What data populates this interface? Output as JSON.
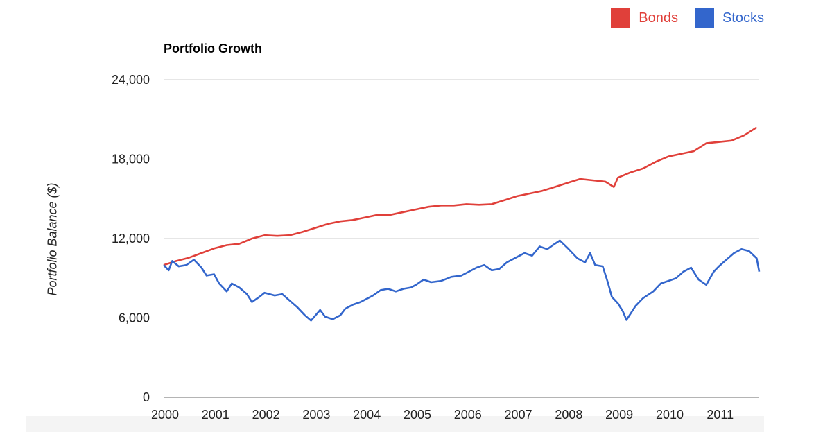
{
  "chart_data": {
    "type": "line",
    "title": "Portfolio Growth",
    "ylabel": "Portfolio Balance ($)",
    "xlabel": "",
    "ylim": [
      0,
      24000
    ],
    "xlim": [
      2000,
      2011.8
    ],
    "yticks": [
      0,
      6000,
      12000,
      18000,
      24000
    ],
    "ytick_labels": [
      "0",
      "6,000",
      "12,000",
      "18,000",
      "24,000"
    ],
    "xticks": [
      2000,
      2001,
      2002,
      2003,
      2004,
      2005,
      2006,
      2007,
      2008,
      2009,
      2010,
      2011
    ],
    "xtick_labels": [
      "2000",
      "2001",
      "2002",
      "2003",
      "2004",
      "2005",
      "2006",
      "2007",
      "2008",
      "2009",
      "2010",
      "2011"
    ],
    "grid": true,
    "legend_position": "top-right",
    "series": [
      {
        "name": "Bonds",
        "color": "#e0403a",
        "points": [
          [
            2000.0,
            10000
          ],
          [
            2000.25,
            10300
          ],
          [
            2000.5,
            10550
          ],
          [
            2000.75,
            10900
          ],
          [
            2001.0,
            11250
          ],
          [
            2001.25,
            11500
          ],
          [
            2001.5,
            11600
          ],
          [
            2001.75,
            12000
          ],
          [
            2002.0,
            12250
          ],
          [
            2002.25,
            12200
          ],
          [
            2002.5,
            12250
          ],
          [
            2002.75,
            12500
          ],
          [
            2003.0,
            12800
          ],
          [
            2003.25,
            13100
          ],
          [
            2003.5,
            13300
          ],
          [
            2003.75,
            13400
          ],
          [
            2004.0,
            13600
          ],
          [
            2004.25,
            13800
          ],
          [
            2004.5,
            13800
          ],
          [
            2004.75,
            14000
          ],
          [
            2005.0,
            14200
          ],
          [
            2005.25,
            14400
          ],
          [
            2005.5,
            14500
          ],
          [
            2005.75,
            14500
          ],
          [
            2006.0,
            14600
          ],
          [
            2006.25,
            14550
          ],
          [
            2006.5,
            14600
          ],
          [
            2006.75,
            14900
          ],
          [
            2007.0,
            15200
          ],
          [
            2007.25,
            15400
          ],
          [
            2007.5,
            15600
          ],
          [
            2007.75,
            15900
          ],
          [
            2008.0,
            16200
          ],
          [
            2008.25,
            16500
          ],
          [
            2008.5,
            16400
          ],
          [
            2008.75,
            16300
          ],
          [
            2008.92,
            15900
          ],
          [
            2009.0,
            16600
          ],
          [
            2009.25,
            17000
          ],
          [
            2009.5,
            17300
          ],
          [
            2009.75,
            17800
          ],
          [
            2010.0,
            18200
          ],
          [
            2010.25,
            18400
          ],
          [
            2010.5,
            18600
          ],
          [
            2010.75,
            19200
          ],
          [
            2011.0,
            19300
          ],
          [
            2011.25,
            19400
          ],
          [
            2011.5,
            19800
          ],
          [
            2011.75,
            20400
          ]
        ]
      },
      {
        "name": "Stocks",
        "color": "#3366cc",
        "points": [
          [
            2000.0,
            10000
          ],
          [
            2000.1,
            9600
          ],
          [
            2000.17,
            10300
          ],
          [
            2000.3,
            9900
          ],
          [
            2000.45,
            10000
          ],
          [
            2000.6,
            10400
          ],
          [
            2000.75,
            9800
          ],
          [
            2000.85,
            9200
          ],
          [
            2001.0,
            9300
          ],
          [
            2001.1,
            8600
          ],
          [
            2001.25,
            8000
          ],
          [
            2001.35,
            8600
          ],
          [
            2001.5,
            8300
          ],
          [
            2001.65,
            7800
          ],
          [
            2001.75,
            7200
          ],
          [
            2001.9,
            7600
          ],
          [
            2002.0,
            7900
          ],
          [
            2002.2,
            7700
          ],
          [
            2002.35,
            7800
          ],
          [
            2002.5,
            7300
          ],
          [
            2002.65,
            6800
          ],
          [
            2002.8,
            6200
          ],
          [
            2002.92,
            5800
          ],
          [
            2003.1,
            6600
          ],
          [
            2003.2,
            6100
          ],
          [
            2003.35,
            5900
          ],
          [
            2003.5,
            6200
          ],
          [
            2003.6,
            6700
          ],
          [
            2003.75,
            7000
          ],
          [
            2003.9,
            7200
          ],
          [
            2004.0,
            7400
          ],
          [
            2004.15,
            7700
          ],
          [
            2004.3,
            8100
          ],
          [
            2004.45,
            8200
          ],
          [
            2004.6,
            8000
          ],
          [
            2004.75,
            8200
          ],
          [
            2004.9,
            8300
          ],
          [
            2005.0,
            8500
          ],
          [
            2005.15,
            8900
          ],
          [
            2005.3,
            8700
          ],
          [
            2005.5,
            8800
          ],
          [
            2005.7,
            9100
          ],
          [
            2005.9,
            9200
          ],
          [
            2006.0,
            9400
          ],
          [
            2006.2,
            9800
          ],
          [
            2006.35,
            10000
          ],
          [
            2006.5,
            9600
          ],
          [
            2006.65,
            9700
          ],
          [
            2006.8,
            10200
          ],
          [
            2007.0,
            10600
          ],
          [
            2007.15,
            10900
          ],
          [
            2007.3,
            10700
          ],
          [
            2007.45,
            11400
          ],
          [
            2007.6,
            11200
          ],
          [
            2007.75,
            11600
          ],
          [
            2007.85,
            11850
          ],
          [
            2008.0,
            11300
          ],
          [
            2008.2,
            10500
          ],
          [
            2008.35,
            10200
          ],
          [
            2008.45,
            10900
          ],
          [
            2008.55,
            10000
          ],
          [
            2008.7,
            9900
          ],
          [
            2008.8,
            8700
          ],
          [
            2008.88,
            7600
          ],
          [
            2009.0,
            7100
          ],
          [
            2009.1,
            6500
          ],
          [
            2009.17,
            5850
          ],
          [
            2009.35,
            6900
          ],
          [
            2009.5,
            7500
          ],
          [
            2009.7,
            8000
          ],
          [
            2009.85,
            8600
          ],
          [
            2010.0,
            8800
          ],
          [
            2010.15,
            9000
          ],
          [
            2010.3,
            9500
          ],
          [
            2010.45,
            9800
          ],
          [
            2010.6,
            8900
          ],
          [
            2010.75,
            8500
          ],
          [
            2010.9,
            9500
          ],
          [
            2011.0,
            9900
          ],
          [
            2011.15,
            10400
          ],
          [
            2011.3,
            10900
          ],
          [
            2011.45,
            11200
          ],
          [
            2011.6,
            11050
          ],
          [
            2011.75,
            10500
          ],
          [
            2011.8,
            9500
          ]
        ]
      }
    ]
  }
}
